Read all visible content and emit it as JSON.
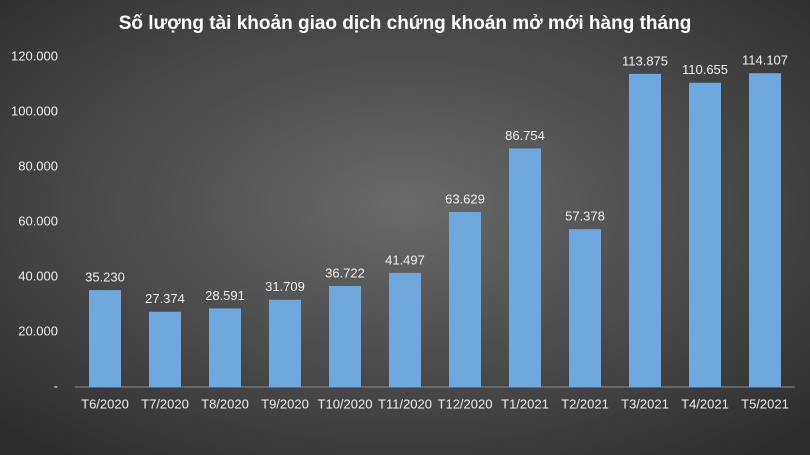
{
  "chart_data": {
    "type": "bar",
    "title": "Số lượng tài khoản giao dịch chứng khoán mở mới hàng tháng",
    "categories": [
      "T6/2020",
      "T7/2020",
      "T8/2020",
      "T9/2020",
      "T10/2020",
      "T11/2020",
      "T12/2020",
      "T1/2021",
      "T2/2021",
      "T3/2021",
      "T4/2021",
      "T5/2021"
    ],
    "values": [
      35230,
      27374,
      28591,
      31709,
      36722,
      41497,
      63629,
      86754,
      57378,
      113875,
      110655,
      114107
    ],
    "value_labels": [
      "35.230",
      "27.374",
      "28.591",
      "31.709",
      "36.722",
      "41.497",
      "63.629",
      "86.754",
      "57.378",
      "113.875",
      "110.655",
      "114.107"
    ],
    "color": "#6fa8dc",
    "ylim": [
      0,
      120000
    ],
    "yticks": [
      {
        "value": 0,
        "label": "-"
      },
      {
        "value": 20000,
        "label": "20.000"
      },
      {
        "value": 40000,
        "label": "40.000"
      },
      {
        "value": 60000,
        "label": "60.000"
      },
      {
        "value": 80000,
        "label": "80.000"
      },
      {
        "value": 100000,
        "label": "100.000"
      },
      {
        "value": 120000,
        "label": "120.000"
      }
    ],
    "grid": false
  }
}
